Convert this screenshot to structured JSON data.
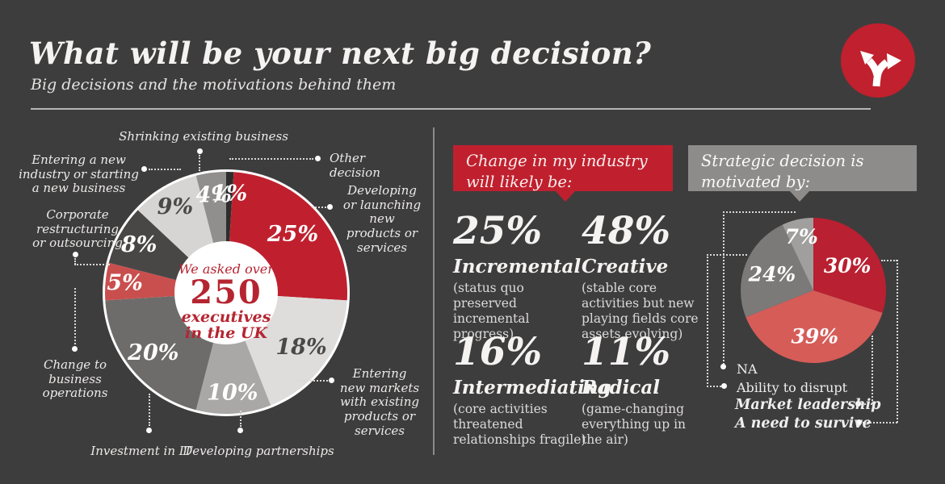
{
  "header": {
    "title": "What will be your next big decision?",
    "subtitle": "Big decisions and the motivations behind them"
  },
  "logo": {
    "icon": "fork-arrows-icon",
    "color": "#c1202e"
  },
  "chart_data": [
    {
      "type": "pie",
      "variant": "donut",
      "title": "Next big decision of 250 UK executives",
      "center_label": {
        "intro": "We asked over",
        "number": "250",
        "line2": "executives",
        "line3": "in the UK"
      },
      "slices": [
        {
          "label": "Other decision",
          "value": 1,
          "color": "#2e2d2d",
          "pct_color": "#ffffff",
          "label_r": 123
        },
        {
          "label": "Developing or launching new products or services",
          "value": 25,
          "color": "#c0202e",
          "pct_color": "#ffffff",
          "label_r": 110
        },
        {
          "label": "Entering new markets with existing products or services",
          "value": 18,
          "color": "#dedddc",
          "pct_color": "#4a4948",
          "label_r": 115
        },
        {
          "label": "Developing partnerships",
          "value": 10,
          "color": "#a9a8a7",
          "pct_color": "#ffffff",
          "label_r": 124
        },
        {
          "label": "Investment in IT",
          "value": 20,
          "color": "#6d6c6b",
          "pct_color": "#ffffff",
          "label_r": 117
        },
        {
          "label": "Change to business operations",
          "value": 5,
          "color": "#c94f4e",
          "pct_color": "#ffffff",
          "label_r": 126
        },
        {
          "label": "Corporate restructuring or outsourcing",
          "value": 8,
          "color": "#484746",
          "pct_color": "#ffffff",
          "label_r": 123
        },
        {
          "label": "Entering a new industry or starting a new business",
          "value": 9,
          "color": "#d6d5d4",
          "pct_color": "#4a4948",
          "label_r": 124
        },
        {
          "label": "Shrinking existing business",
          "value": 4,
          "color": "#908f8e",
          "pct_color": "#ffffff",
          "label_r": 122
        }
      ]
    },
    {
      "type": "pie",
      "title": "Strategic decision motivation",
      "slices": [
        {
          "label": "A need to survive",
          "value": 30,
          "color": "#b92031",
          "pct_color": "#ffffff",
          "label_r": 52
        },
        {
          "label": "Market leadership",
          "value": 39,
          "color": "#d65c58",
          "pct_color": "#ffffff",
          "label_r": 57
        },
        {
          "label": "Ability to disrupt",
          "value": 24,
          "color": "#7b7a79",
          "pct_color": "#ffffff",
          "label_r": 55
        },
        {
          "label": "NA",
          "value": 7,
          "color": "#a09f9e",
          "pct_color": "#ffffff",
          "label_r": 68
        }
      ]
    }
  ],
  "industry_change": {
    "header": "Change in my industry will likely be:",
    "stats": [
      {
        "pct": "25%",
        "name": "Incremental",
        "desc": "(status quo preserved incremental progress)"
      },
      {
        "pct": "48%",
        "name": "Creative",
        "desc": "(stable core activities but new playing fields core assets evolving)"
      },
      {
        "pct": "16%",
        "name": "Intermediating",
        "desc": "(core activities threatened relationships fragile)"
      },
      {
        "pct": "11%",
        "name": "Radical",
        "desc": "(game-changing everything up in the air)"
      }
    ]
  },
  "motivation": {
    "header": "Strategic decision is motivated by:"
  },
  "colors": {
    "background": "#3e3d3d",
    "accent_red": "#c0202e",
    "bubble_gray": "#8d8c8b"
  }
}
